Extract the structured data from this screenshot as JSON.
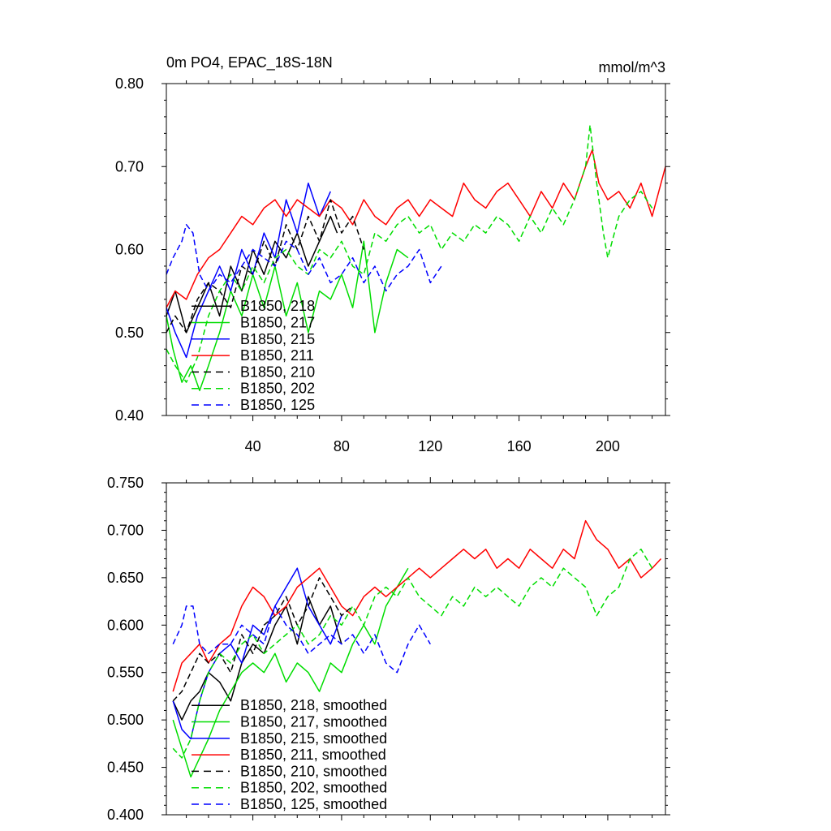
{
  "chart_data": [
    {
      "type": "line",
      "title": "0m PO4, EPAC_18S-18N",
      "units": "mmol/m^3",
      "xlabel": "",
      "ylabel": "",
      "xlim": [
        1,
        226
      ],
      "ylim": [
        0.4,
        0.8
      ],
      "xticks": [
        40,
        80,
        120,
        160,
        200
      ],
      "xtick_labels": [
        "40",
        "80",
        "120",
        "160",
        "200"
      ],
      "yticks": [
        0.4,
        0.5,
        0.6,
        0.7,
        0.8
      ],
      "ytick_labels": [
        "0.40",
        "0.50",
        "0.60",
        "0.70",
        "0.80"
      ],
      "legend_position": "bottom-left",
      "series": [
        {
          "name": "B1850, 218",
          "color": "#000000",
          "dash": "solid",
          "x": [
            1,
            5,
            10,
            15,
            20,
            25,
            30,
            35,
            40,
            45,
            50,
            55,
            60,
            65,
            70,
            75,
            78
          ],
          "values": [
            0.52,
            0.55,
            0.5,
            0.53,
            0.56,
            0.52,
            0.58,
            0.55,
            0.6,
            0.57,
            0.61,
            0.59,
            0.62,
            0.58,
            0.61,
            0.64,
            0.62
          ]
        },
        {
          "name": "B1850, 217",
          "color": "#00dd00",
          "dash": "solid",
          "x": [
            1,
            4,
            8,
            12,
            16,
            20,
            25,
            30,
            35,
            40,
            45,
            50,
            55,
            60,
            65,
            70,
            75,
            80,
            85,
            90,
            95,
            100,
            105,
            110
          ],
          "values": [
            0.52,
            0.48,
            0.44,
            0.46,
            0.43,
            0.46,
            0.5,
            0.55,
            0.52,
            0.57,
            0.53,
            0.58,
            0.52,
            0.56,
            0.5,
            0.55,
            0.54,
            0.57,
            0.53,
            0.61,
            0.5,
            0.56,
            0.6,
            0.59
          ]
        },
        {
          "name": "B1850, 215",
          "color": "#0000ff",
          "dash": "solid",
          "x": [
            1,
            5,
            10,
            15,
            20,
            25,
            30,
            35,
            40,
            45,
            50,
            55,
            60,
            65,
            70,
            75
          ],
          "values": [
            0.53,
            0.5,
            0.47,
            0.52,
            0.55,
            0.58,
            0.55,
            0.6,
            0.57,
            0.62,
            0.59,
            0.66,
            0.62,
            0.68,
            0.64,
            0.67
          ]
        },
        {
          "name": "B1850, 211",
          "color": "#ff0000",
          "dash": "solid",
          "x": [
            1,
            5,
            10,
            15,
            20,
            25,
            30,
            35,
            40,
            45,
            50,
            55,
            60,
            65,
            70,
            75,
            80,
            85,
            90,
            95,
            100,
            105,
            110,
            115,
            120,
            125,
            130,
            135,
            140,
            145,
            150,
            155,
            160,
            165,
            170,
            175,
            180,
            185,
            190,
            193,
            196,
            200,
            205,
            210,
            215,
            220,
            226
          ],
          "values": [
            0.53,
            0.55,
            0.54,
            0.57,
            0.59,
            0.6,
            0.62,
            0.64,
            0.63,
            0.65,
            0.66,
            0.64,
            0.66,
            0.65,
            0.64,
            0.66,
            0.65,
            0.63,
            0.66,
            0.64,
            0.63,
            0.65,
            0.66,
            0.64,
            0.66,
            0.65,
            0.64,
            0.68,
            0.66,
            0.65,
            0.67,
            0.68,
            0.66,
            0.64,
            0.67,
            0.65,
            0.68,
            0.66,
            0.7,
            0.72,
            0.68,
            0.66,
            0.67,
            0.65,
            0.68,
            0.64,
            0.7
          ]
        },
        {
          "name": "B1850, 210",
          "color": "#000000",
          "dash": "dashed",
          "x": [
            1,
            5,
            10,
            15,
            20,
            25,
            30,
            35,
            40,
            45,
            50,
            55,
            60,
            65,
            70,
            75,
            80,
            85,
            90
          ],
          "values": [
            0.5,
            0.52,
            0.5,
            0.54,
            0.56,
            0.55,
            0.53,
            0.58,
            0.57,
            0.61,
            0.58,
            0.63,
            0.6,
            0.64,
            0.61,
            0.66,
            0.62,
            0.64,
            0.6
          ]
        },
        {
          "name": "B1850, 202",
          "color": "#00dd00",
          "dash": "dashed",
          "x": [
            1,
            5,
            10,
            15,
            20,
            25,
            30,
            35,
            40,
            45,
            50,
            55,
            60,
            65,
            70,
            75,
            80,
            85,
            90,
            95,
            100,
            105,
            110,
            115,
            120,
            125,
            130,
            135,
            140,
            145,
            150,
            155,
            160,
            165,
            170,
            175,
            180,
            185,
            190,
            192,
            195,
            198,
            200,
            205,
            210,
            215,
            220
          ],
          "values": [
            0.48,
            0.46,
            0.44,
            0.47,
            0.52,
            0.55,
            0.57,
            0.55,
            0.58,
            0.56,
            0.59,
            0.6,
            0.58,
            0.57,
            0.6,
            0.59,
            0.61,
            0.58,
            0.57,
            0.62,
            0.61,
            0.63,
            0.64,
            0.62,
            0.63,
            0.6,
            0.62,
            0.61,
            0.63,
            0.62,
            0.64,
            0.63,
            0.61,
            0.64,
            0.62,
            0.65,
            0.63,
            0.66,
            0.7,
            0.75,
            0.68,
            0.62,
            0.59,
            0.64,
            0.66,
            0.67,
            0.65
          ]
        },
        {
          "name": "B1850, 125",
          "color": "#0000ff",
          "dash": "dashed",
          "x": [
            1,
            4,
            8,
            10,
            13,
            16,
            20,
            25,
            30,
            35,
            40,
            45,
            50,
            55,
            60,
            65,
            70,
            75,
            80,
            85,
            90,
            95,
            100,
            105,
            110,
            115,
            120,
            125
          ],
          "values": [
            0.57,
            0.59,
            0.61,
            0.63,
            0.62,
            0.57,
            0.55,
            0.57,
            0.56,
            0.58,
            0.6,
            0.59,
            0.58,
            0.61,
            0.6,
            0.57,
            0.59,
            0.56,
            0.57,
            0.59,
            0.56,
            0.58,
            0.55,
            0.57,
            0.58,
            0.6,
            0.56,
            0.58
          ]
        }
      ]
    },
    {
      "type": "line",
      "title": "",
      "xlabel": "",
      "ylabel": "",
      "xlim": [
        1,
        226
      ],
      "ylim": [
        0.4,
        0.75
      ],
      "xticks": [
        40,
        80,
        120,
        160,
        200
      ],
      "xtick_labels": [],
      "yticks": [
        0.4,
        0.45,
        0.5,
        0.55,
        0.6,
        0.65,
        0.7,
        0.75
      ],
      "ytick_labels": [
        "0.400",
        "0.450",
        "0.500",
        "0.550",
        "0.600",
        "0.650",
        "0.700",
        "0.750"
      ],
      "legend_position": "bottom-left",
      "series": [
        {
          "name": "B1850, 218, smoothed",
          "color": "#000000",
          "dash": "solid",
          "x": [
            4,
            8,
            12,
            16,
            20,
            25,
            30,
            35,
            40,
            45,
            50,
            55,
            60,
            65,
            70,
            75,
            80
          ],
          "values": [
            0.52,
            0.5,
            0.52,
            0.53,
            0.55,
            0.54,
            0.52,
            0.56,
            0.58,
            0.57,
            0.6,
            0.62,
            0.58,
            0.63,
            0.6,
            0.62,
            0.58
          ]
        },
        {
          "name": "B1850, 217, smoothed",
          "color": "#00dd00",
          "dash": "solid",
          "x": [
            4,
            8,
            12,
            16,
            20,
            25,
            30,
            35,
            40,
            45,
            50,
            55,
            60,
            65,
            70,
            75,
            80,
            85,
            90,
            95,
            100,
            105,
            110
          ],
          "values": [
            0.5,
            0.47,
            0.44,
            0.46,
            0.48,
            0.51,
            0.53,
            0.55,
            0.56,
            0.55,
            0.57,
            0.54,
            0.56,
            0.55,
            0.53,
            0.56,
            0.55,
            0.58,
            0.6,
            0.58,
            0.62,
            0.64,
            0.66
          ]
        },
        {
          "name": "B1850, 215, smoothed",
          "color": "#0000ff",
          "dash": "solid",
          "x": [
            4,
            8,
            12,
            16,
            20,
            25,
            30,
            35,
            40,
            45,
            50,
            55,
            60,
            65,
            70,
            75,
            80
          ],
          "values": [
            0.52,
            0.49,
            0.48,
            0.52,
            0.55,
            0.57,
            0.58,
            0.56,
            0.6,
            0.59,
            0.62,
            0.64,
            0.66,
            0.62,
            0.6,
            0.58,
            0.61
          ]
        },
        {
          "name": "B1850, 211, smoothed",
          "color": "#ff0000",
          "dash": "solid",
          "x": [
            4,
            8,
            12,
            16,
            20,
            25,
            30,
            35,
            40,
            45,
            50,
            55,
            60,
            65,
            70,
            75,
            80,
            85,
            90,
            95,
            100,
            105,
            110,
            115,
            120,
            125,
            130,
            135,
            140,
            145,
            150,
            155,
            160,
            165,
            170,
            175,
            180,
            185,
            190,
            195,
            200,
            205,
            210,
            215,
            220,
            224
          ],
          "values": [
            0.53,
            0.56,
            0.57,
            0.58,
            0.56,
            0.58,
            0.59,
            0.62,
            0.64,
            0.63,
            0.61,
            0.62,
            0.64,
            0.65,
            0.66,
            0.64,
            0.62,
            0.61,
            0.63,
            0.64,
            0.63,
            0.64,
            0.65,
            0.66,
            0.65,
            0.66,
            0.67,
            0.68,
            0.67,
            0.68,
            0.66,
            0.67,
            0.66,
            0.68,
            0.67,
            0.66,
            0.68,
            0.67,
            0.71,
            0.69,
            0.68,
            0.66,
            0.67,
            0.65,
            0.66,
            0.67
          ]
        },
        {
          "name": "B1850, 210, smoothed",
          "color": "#000000",
          "dash": "dashed",
          "x": [
            4,
            8,
            12,
            16,
            20,
            25,
            30,
            35,
            40,
            45,
            50,
            55,
            60,
            65,
            70,
            75,
            80,
            85
          ],
          "values": [
            0.52,
            0.53,
            0.55,
            0.57,
            0.56,
            0.57,
            0.55,
            0.59,
            0.57,
            0.6,
            0.61,
            0.63,
            0.6,
            0.62,
            0.65,
            0.63,
            0.61,
            0.62
          ]
        },
        {
          "name": "B1850, 202, smoothed",
          "color": "#00dd00",
          "dash": "dashed",
          "x": [
            4,
            8,
            12,
            16,
            20,
            25,
            30,
            35,
            40,
            45,
            50,
            55,
            60,
            65,
            70,
            75,
            80,
            85,
            90,
            95,
            100,
            105,
            110,
            115,
            120,
            125,
            130,
            135,
            140,
            145,
            150,
            155,
            160,
            165,
            170,
            175,
            180,
            185,
            190,
            195,
            200,
            205,
            210,
            215,
            220
          ],
          "values": [
            0.47,
            0.46,
            0.48,
            0.52,
            0.55,
            0.57,
            0.56,
            0.58,
            0.59,
            0.57,
            0.58,
            0.59,
            0.6,
            0.58,
            0.59,
            0.61,
            0.6,
            0.62,
            0.6,
            0.63,
            0.64,
            0.63,
            0.65,
            0.63,
            0.62,
            0.61,
            0.63,
            0.62,
            0.64,
            0.63,
            0.64,
            0.63,
            0.62,
            0.64,
            0.65,
            0.64,
            0.66,
            0.65,
            0.64,
            0.61,
            0.63,
            0.64,
            0.67,
            0.68,
            0.66
          ]
        },
        {
          "name": "B1850, 125, smoothed",
          "color": "#0000ff",
          "dash": "dashed",
          "x": [
            4,
            8,
            10,
            13,
            16,
            20,
            25,
            30,
            35,
            40,
            45,
            50,
            55,
            60,
            65,
            70,
            75,
            80,
            85,
            90,
            95,
            100,
            105,
            110,
            115,
            120
          ],
          "values": [
            0.58,
            0.6,
            0.62,
            0.62,
            0.58,
            0.57,
            0.58,
            0.58,
            0.6,
            0.59,
            0.58,
            0.62,
            0.6,
            0.59,
            0.57,
            0.58,
            0.59,
            0.58,
            0.59,
            0.57,
            0.59,
            0.56,
            0.55,
            0.58,
            0.6,
            0.58
          ]
        }
      ]
    }
  ]
}
